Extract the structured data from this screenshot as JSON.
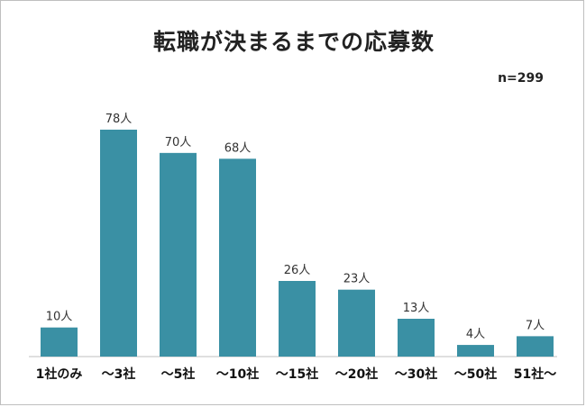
{
  "chart_data": {
    "type": "bar",
    "title": "転職が決まるまでの応募数",
    "sample_size": "n=299",
    "categories": [
      "1社のみ",
      "～3社",
      "～5社",
      "～10社",
      "～15社",
      "～20社",
      "～30社",
      "～50社",
      "51社～"
    ],
    "values": [
      10,
      78,
      70,
      68,
      26,
      23,
      13,
      4,
      7
    ],
    "value_labels": [
      "10人",
      "78人",
      "70人",
      "68人",
      "26人",
      "23人",
      "13人",
      "4人",
      "7人"
    ],
    "ylim": [
      0,
      80
    ],
    "grid": false,
    "bar_color": "#3a90a4"
  }
}
